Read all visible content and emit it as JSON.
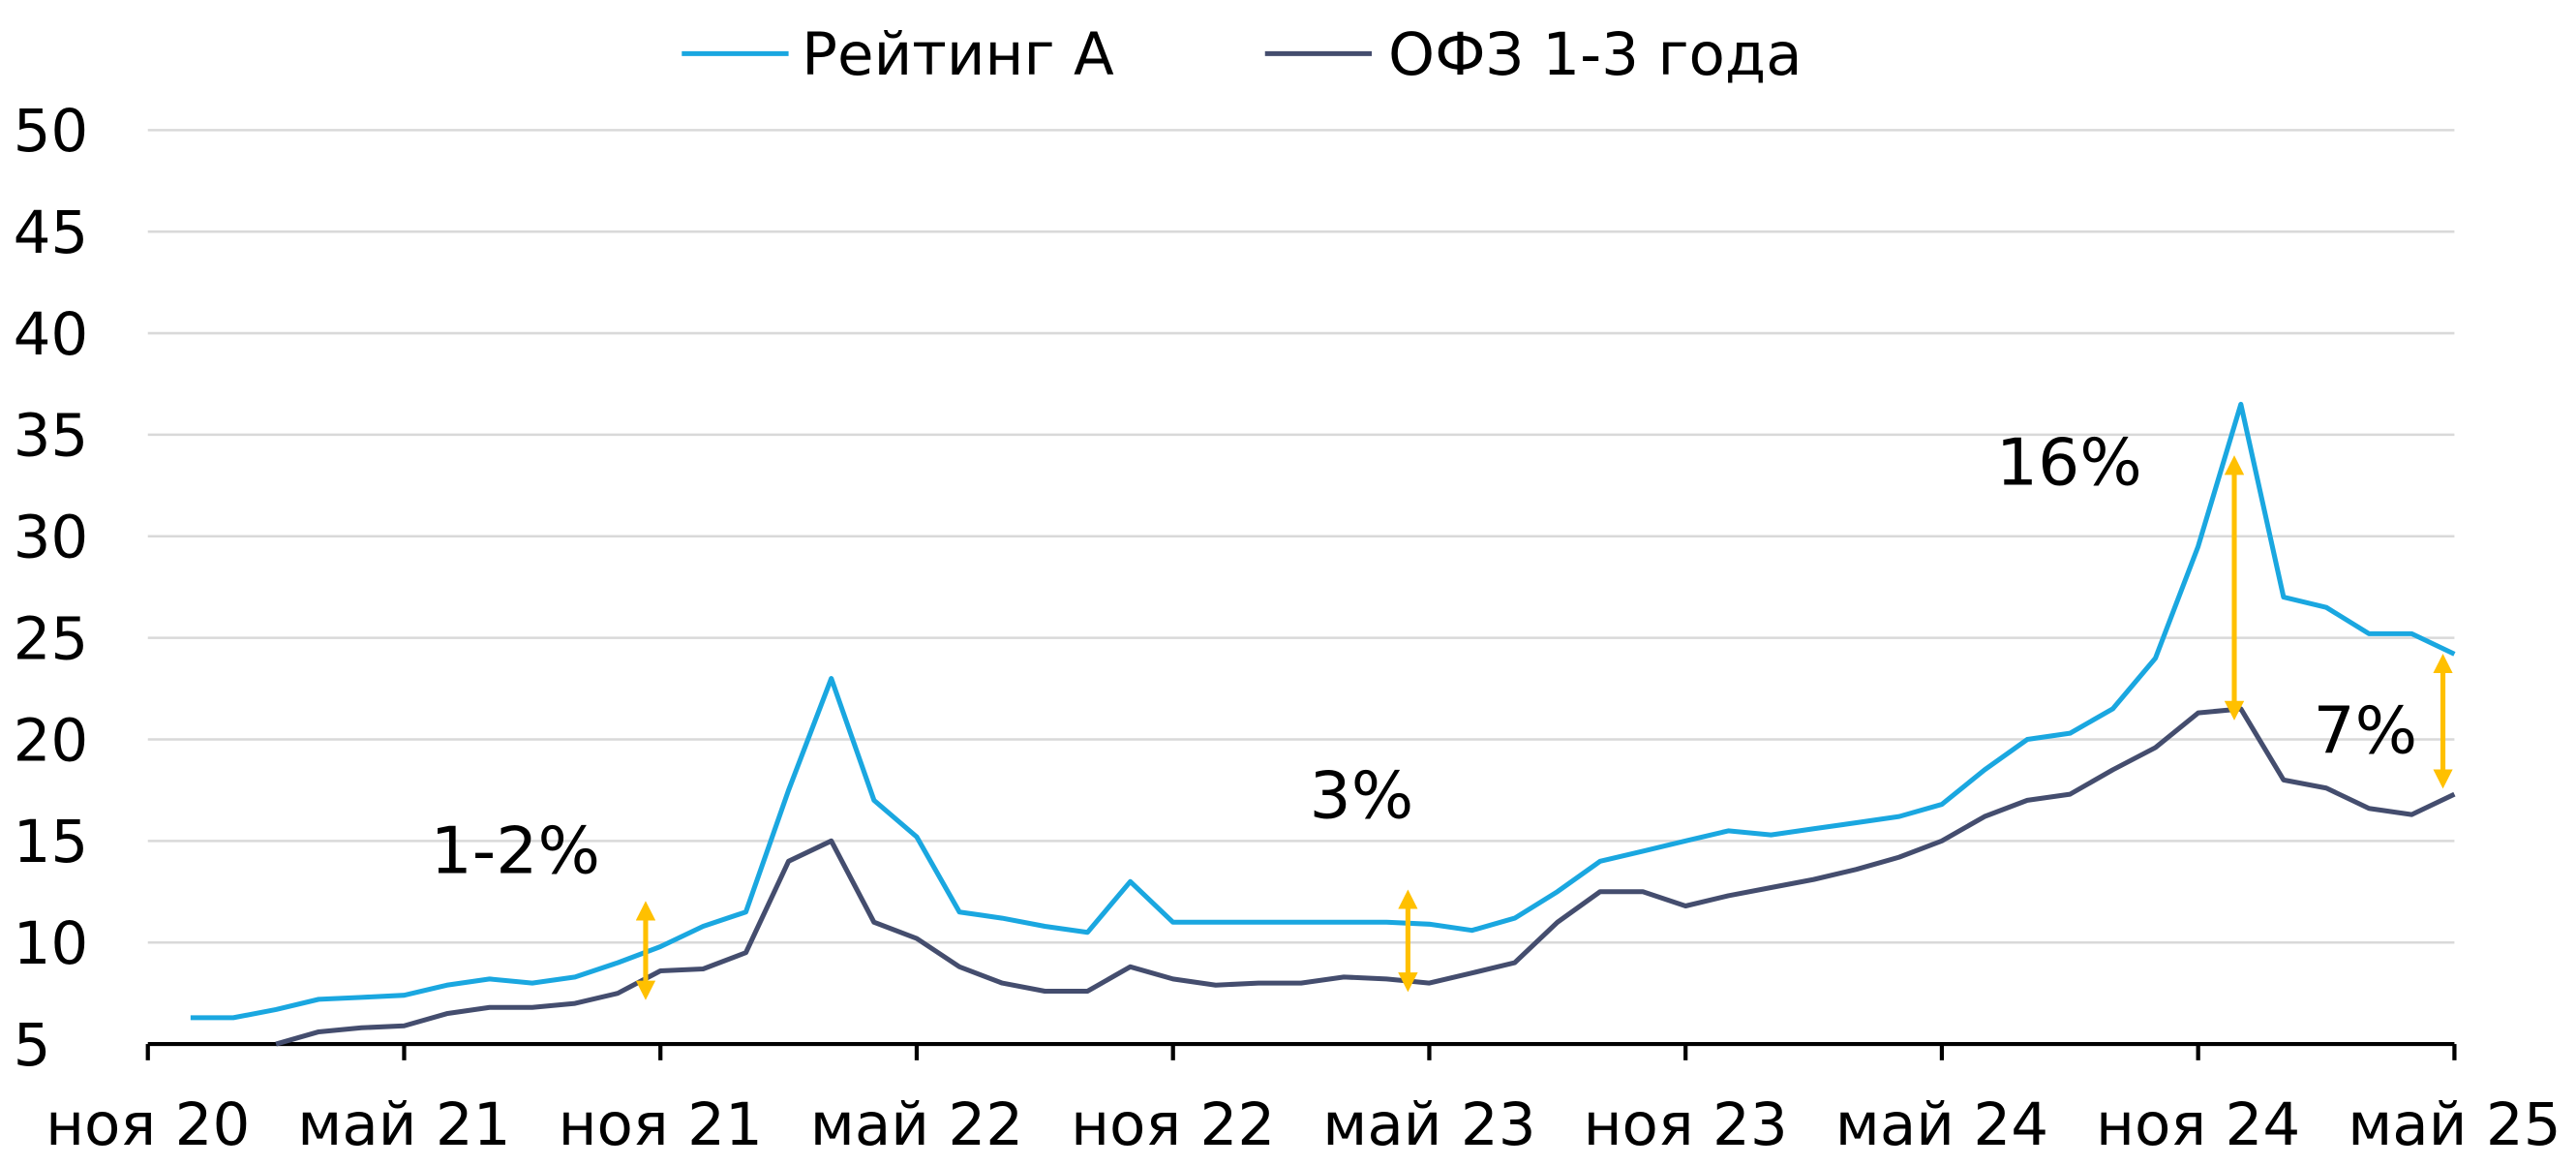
{
  "chart_data": {
    "type": "line",
    "categories": [
      "ноя 20",
      null,
      null,
      null,
      null,
      null,
      "май 21",
      null,
      null,
      null,
      null,
      null,
      "ноя 21",
      null,
      null,
      null,
      null,
      null,
      "май 22",
      null,
      null,
      null,
      null,
      null,
      "ноя 22",
      null,
      null,
      null,
      null,
      null,
      "май 23",
      null,
      null,
      null,
      null,
      null,
      "ноя 23",
      null,
      null,
      null,
      null,
      null,
      "май 24",
      null,
      null,
      null,
      null,
      null,
      "ноя 24",
      null,
      null,
      null,
      null,
      null,
      "май 25"
    ],
    "series": [
      {
        "name": "Рейтинг А",
        "color": "#1aa7e0",
        "values": [
          null,
          6.3,
          6.3,
          6.7,
          7.2,
          7.3,
          7.4,
          7.9,
          8.2,
          8.0,
          8.3,
          9.0,
          9.8,
          10.8,
          11.5,
          17.5,
          23.0,
          17.0,
          15.2,
          11.5,
          11.2,
          10.8,
          10.5,
          13.0,
          11.0,
          11.0,
          11.0,
          11.0,
          11.0,
          11.0,
          10.9,
          10.6,
          11.2,
          12.5,
          14.0,
          14.5,
          15.0,
          15.5,
          15.3,
          15.6,
          15.9,
          16.2,
          16.8,
          18.5,
          20.0,
          20.3,
          21.5,
          24.0,
          29.5,
          36.5,
          27.0,
          26.5,
          25.2,
          25.2,
          24.2
        ]
      },
      {
        "name": "ОФЗ 1-3 года",
        "color": "#444d6e",
        "values": [
          null,
          null,
          null,
          5.0,
          5.6,
          5.8,
          5.9,
          6.5,
          6.8,
          6.8,
          7.0,
          7.5,
          8.6,
          8.7,
          9.5,
          14.0,
          15.0,
          11.0,
          10.2,
          8.8,
          8.0,
          7.6,
          7.6,
          8.8,
          8.2,
          7.9,
          8.0,
          8.0,
          8.3,
          8.2,
          8.0,
          8.5,
          9.0,
          11.0,
          12.5,
          12.5,
          11.8,
          12.3,
          12.7,
          13.1,
          13.6,
          14.2,
          15.0,
          16.2,
          17.0,
          17.3,
          18.5,
          19.6,
          21.3,
          21.5,
          18.0,
          17.6,
          16.6,
          16.3,
          17.3
        ]
      }
    ],
    "ylim": [
      5,
      50
    ],
    "yticks": [
      5,
      10,
      15,
      20,
      25,
      30,
      35,
      40,
      45,
      50
    ],
    "grid": true,
    "annotations": [
      "1-2%",
      "3%",
      "16%",
      "7%"
    ]
  }
}
